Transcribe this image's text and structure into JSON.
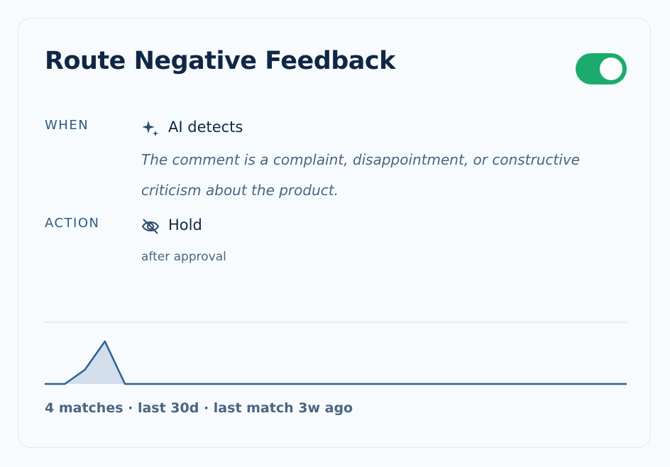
{
  "card": {
    "title": "Route Negative Feedback",
    "enabled": true,
    "when": {
      "label": "WHEN",
      "trigger": "AI detects",
      "description": "The comment is a complaint, disappointment, or constructive criticism about the product."
    },
    "action": {
      "label": "ACTION",
      "name": "Hold",
      "detail": "after approval"
    },
    "sparkline": {
      "values": [
        0,
        0,
        1,
        3,
        0,
        0,
        0,
        0,
        0,
        0,
        0,
        0,
        0,
        0,
        0,
        0,
        0,
        0,
        0,
        0,
        0,
        0,
        0,
        0,
        0,
        0,
        0,
        0,
        0,
        0
      ],
      "ylim": [
        0,
        3
      ],
      "color": "#2d5f93"
    },
    "footer": "4 matches · last 30d · last match 3w ago"
  }
}
